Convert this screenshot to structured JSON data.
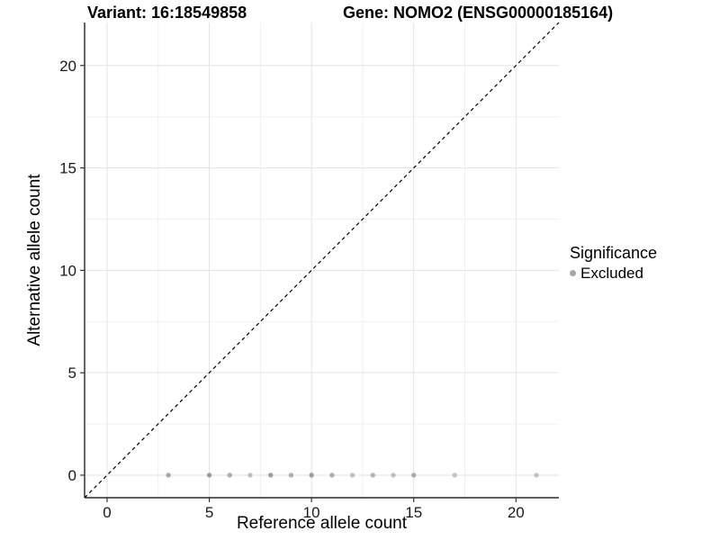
{
  "header": {
    "variant_title": "Variant: 16:18549858",
    "gene_title": "Gene: NOMO2 (ENSG00000185164)"
  },
  "legend": {
    "title": "Significance",
    "items": [
      {
        "label": "Excluded",
        "color": "#a6a6a6",
        "shape": "circle"
      }
    ]
  },
  "colors": {
    "grid_major": "#e3e3e3",
    "grid_minor": "#f0f0f0",
    "axis_line": "#000000",
    "tick_mark": "#333333",
    "tick_text": "#1a1a1a",
    "identity_line": "#000000",
    "point": "#8f8f8f"
  },
  "chart_data": {
    "type": "scatter",
    "title_left": "Variant: 16:18549858",
    "title_right": "Gene: NOMO2 (ENSG00000185164)",
    "xlabel": "Reference allele count",
    "ylabel": "Alternative allele count",
    "xlim": [
      -1.1,
      22.1
    ],
    "ylim": [
      -1.1,
      22.1
    ],
    "xticks": [
      0,
      5,
      10,
      15,
      20
    ],
    "yticks": [
      0,
      5,
      10,
      15,
      20
    ],
    "minor_ticks": [
      2.5,
      7.5,
      12.5,
      17.5
    ],
    "grid": "major+minor",
    "legend_position": "right",
    "identity_line": {
      "style": "dashed",
      "from": [
        -1.1,
        -1.1
      ],
      "to": [
        22.1,
        22.1
      ]
    },
    "series": [
      {
        "name": "Excluded",
        "color": "#8f8f8f",
        "points": [
          {
            "x": 3,
            "y": 0,
            "opacity": 0.75
          },
          {
            "x": 5,
            "y": 0,
            "opacity": 0.85
          },
          {
            "x": 6,
            "y": 0,
            "opacity": 0.7
          },
          {
            "x": 7,
            "y": 0,
            "opacity": 0.55
          },
          {
            "x": 8,
            "y": 0,
            "opacity": 0.85
          },
          {
            "x": 9,
            "y": 0,
            "opacity": 0.7
          },
          {
            "x": 10,
            "y": 0,
            "opacity": 0.85
          },
          {
            "x": 11,
            "y": 0,
            "opacity": 0.7
          },
          {
            "x": 12,
            "y": 0,
            "opacity": 0.55
          },
          {
            "x": 13,
            "y": 0,
            "opacity": 0.65
          },
          {
            "x": 14,
            "y": 0,
            "opacity": 0.55
          },
          {
            "x": 15,
            "y": 0,
            "opacity": 0.7
          },
          {
            "x": 17,
            "y": 0,
            "opacity": 0.5
          },
          {
            "x": 21,
            "y": 0,
            "opacity": 0.5
          }
        ]
      }
    ]
  }
}
